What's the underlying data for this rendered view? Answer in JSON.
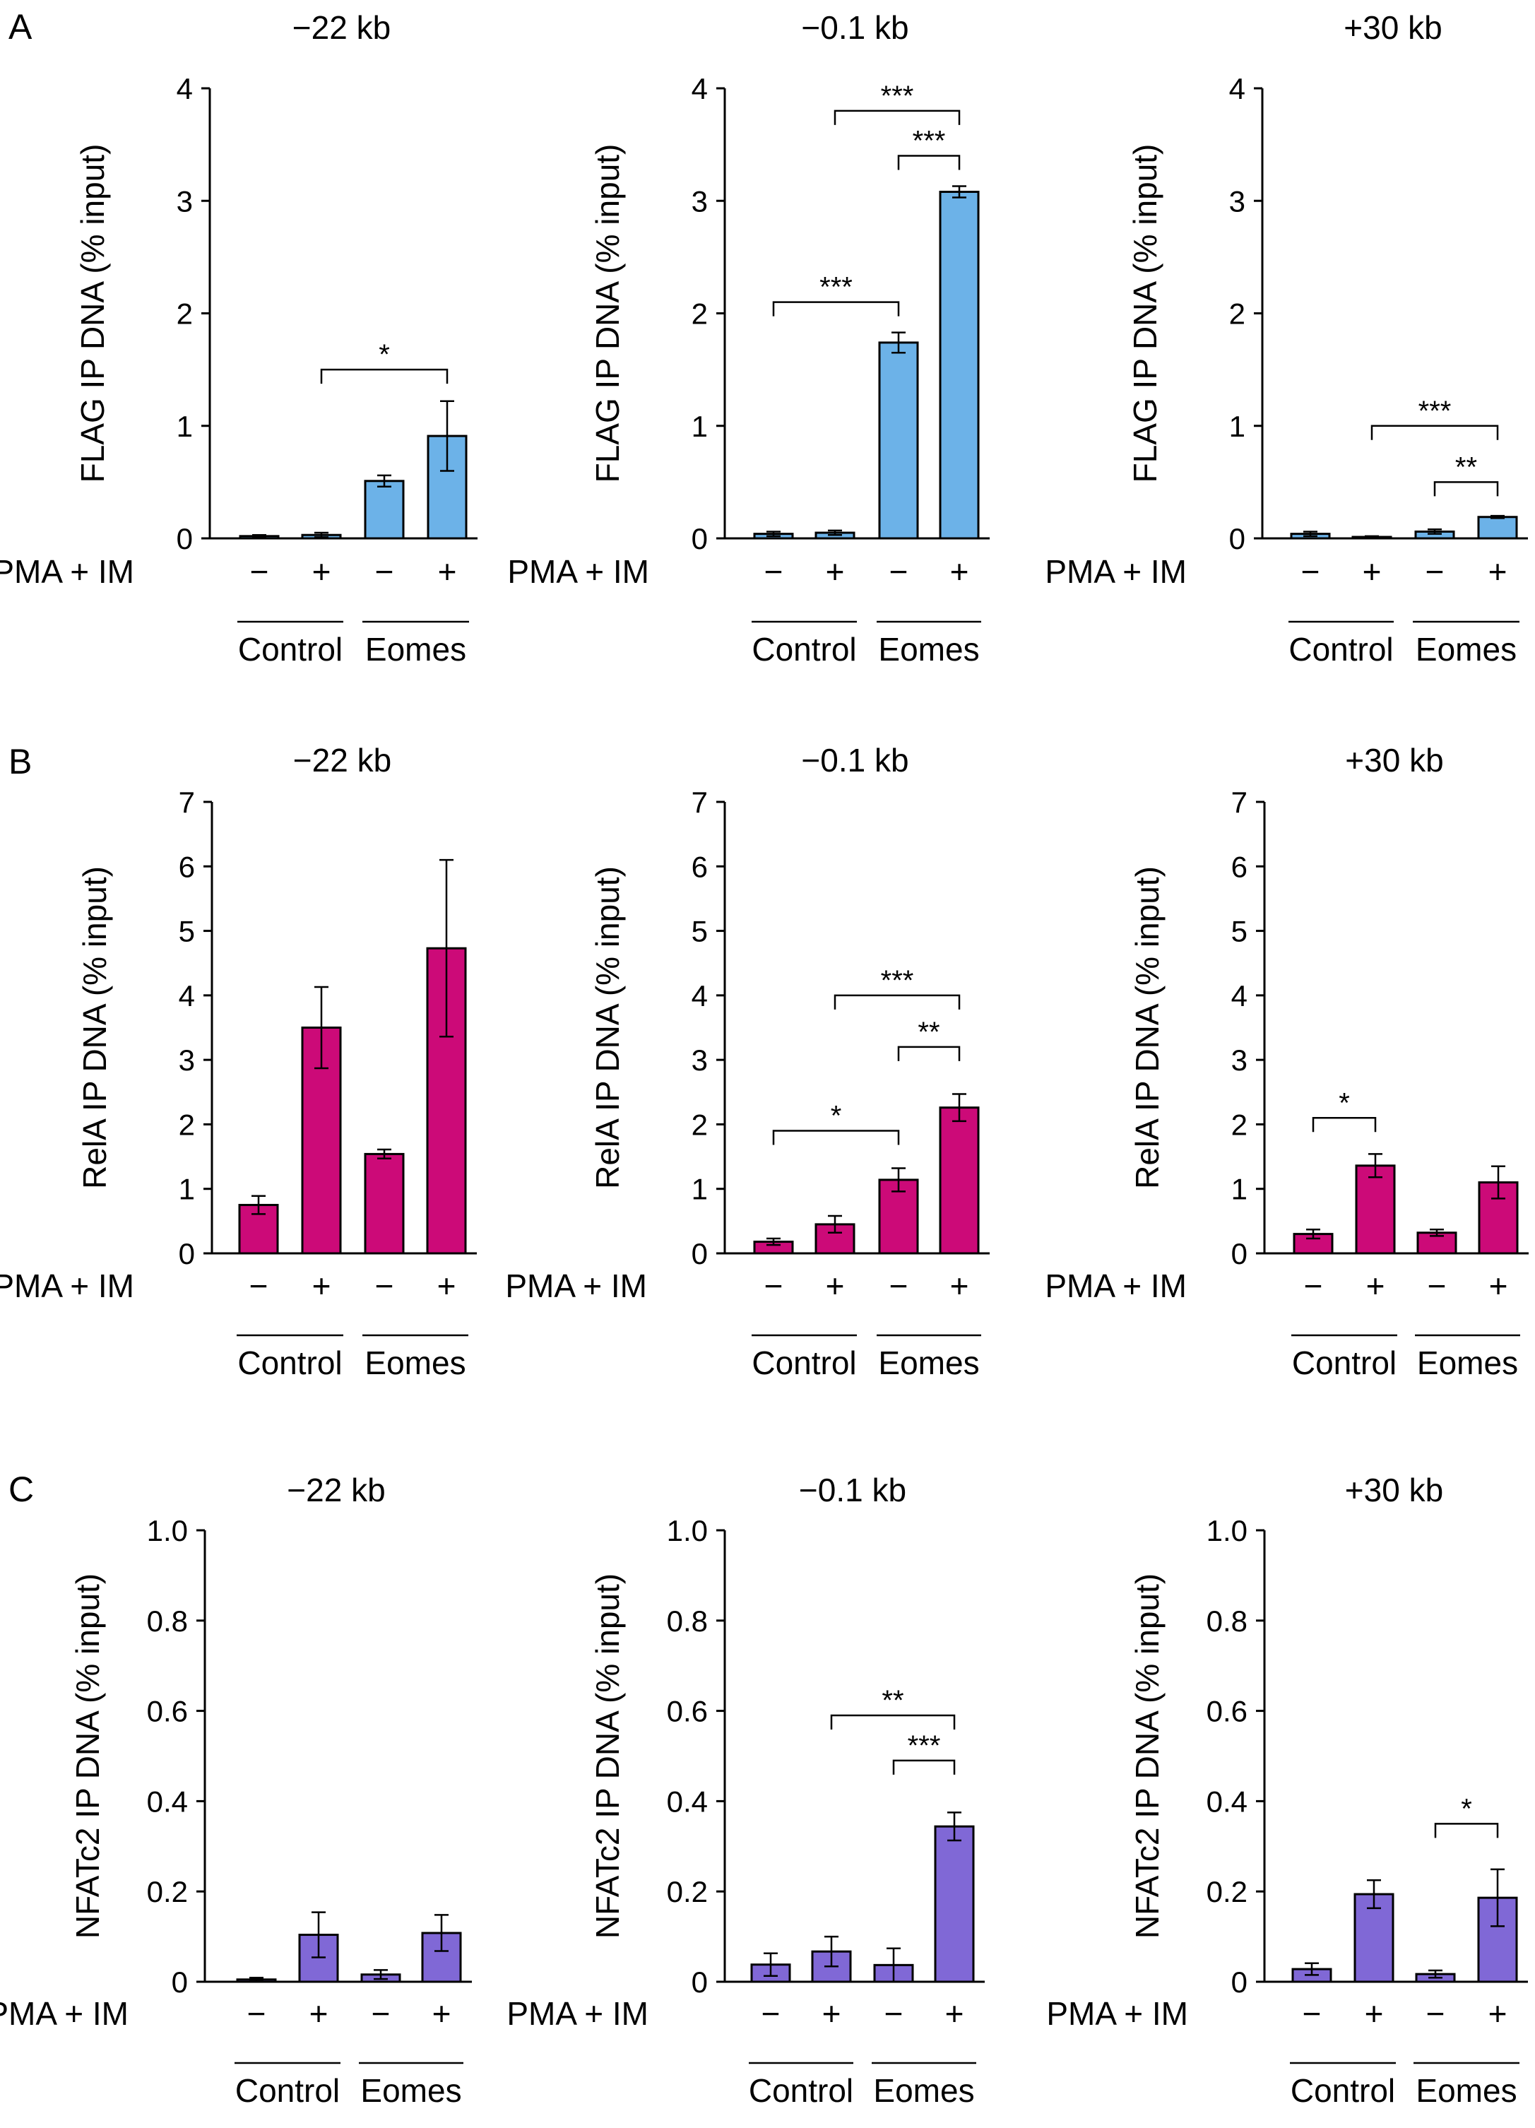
{
  "panel_labels": [
    "A",
    "B",
    "C"
  ],
  "row_label": "PMA + IM",
  "treatment_signs": [
    "−",
    "+",
    "−",
    "+"
  ],
  "group_labels": [
    "Control",
    "Eomes"
  ],
  "colors": {
    "A": "#6cb2e8",
    "B": "#cc0a78",
    "C": "#8068d6"
  },
  "chart_data": [
    {
      "type": "bar",
      "panel": "A",
      "title": "−22 kb",
      "ylabel": "FLAG IP DNA (% input)",
      "ylim": [
        0,
        4
      ],
      "yticks": [
        "0",
        "1",
        "2",
        "3",
        "4"
      ],
      "yticks_values": [
        0,
        1,
        2,
        3,
        4
      ],
      "categories": [
        "Control −",
        "Control +",
        "Eomes −",
        "Eomes +"
      ],
      "values": [
        0.02,
        0.03,
        0.51,
        0.91
      ],
      "errors": [
        0.01,
        0.02,
        0.05,
        0.31
      ],
      "significance": [
        {
          "from": 1,
          "to": 3,
          "label": "*",
          "y": 1.5
        }
      ]
    },
    {
      "type": "bar",
      "panel": "A",
      "title": "−0.1 kb",
      "ylabel": "FLAG IP DNA (% input)",
      "ylim": [
        0,
        4
      ],
      "yticks": [
        "0",
        "1",
        "2",
        "3",
        "4"
      ],
      "yticks_values": [
        0,
        1,
        2,
        3,
        4
      ],
      "categories": [
        "Control −",
        "Control +",
        "Eomes −",
        "Eomes +"
      ],
      "values": [
        0.04,
        0.05,
        1.74,
        3.08
      ],
      "errors": [
        0.02,
        0.02,
        0.09,
        0.05
      ],
      "significance": [
        {
          "from": 0,
          "to": 2,
          "label": "***",
          "y": 2.1
        },
        {
          "from": 1,
          "to": 3,
          "label": "***",
          "y": 3.8
        },
        {
          "from": 2,
          "to": 3,
          "label": "***",
          "y": 3.4
        }
      ]
    },
    {
      "type": "bar",
      "panel": "A",
      "title": "+30 kb",
      "ylabel": "FLAG IP DNA (% input)",
      "ylim": [
        0,
        4
      ],
      "yticks": [
        "0",
        "1",
        "2",
        "3",
        "4"
      ],
      "yticks_values": [
        0,
        1,
        2,
        3,
        4
      ],
      "categories": [
        "Control −",
        "Control +",
        "Eomes −",
        "Eomes +"
      ],
      "values": [
        0.04,
        0.01,
        0.06,
        0.19
      ],
      "errors": [
        0.02,
        0.01,
        0.02,
        0.01
      ],
      "significance": [
        {
          "from": 1,
          "to": 3,
          "label": "***",
          "y": 1.0
        },
        {
          "from": 2,
          "to": 3,
          "label": "**",
          "y": 0.5
        }
      ]
    },
    {
      "type": "bar",
      "panel": "B",
      "title": "−22 kb",
      "ylabel": "RelA IP DNA (% input)",
      "ylim": [
        0,
        7
      ],
      "yticks": [
        "0",
        "1",
        "2",
        "3",
        "4",
        "5",
        "6",
        "7"
      ],
      "yticks_values": [
        0,
        1,
        2,
        3,
        4,
        5,
        6,
        7
      ],
      "categories": [
        "Control −",
        "Control +",
        "Eomes −",
        "Eomes +"
      ],
      "values": [
        0.75,
        3.5,
        1.54,
        4.73
      ],
      "errors": [
        0.14,
        0.63,
        0.07,
        1.37
      ],
      "significance": []
    },
    {
      "type": "bar",
      "panel": "B",
      "title": "−0.1 kb",
      "ylabel": "RelA IP DNA (% input)",
      "ylim": [
        0,
        7
      ],
      "yticks": [
        "0",
        "1",
        "2",
        "3",
        "4",
        "5",
        "6",
        "7"
      ],
      "yticks_values": [
        0,
        1,
        2,
        3,
        4,
        5,
        6,
        7
      ],
      "categories": [
        "Control −",
        "Control +",
        "Eomes −",
        "Eomes +"
      ],
      "values": [
        0.18,
        0.45,
        1.14,
        2.26
      ],
      "errors": [
        0.05,
        0.13,
        0.18,
        0.21
      ],
      "significance": [
        {
          "from": 0,
          "to": 2,
          "label": "*",
          "y": 1.9
        },
        {
          "from": 1,
          "to": 3,
          "label": "***",
          "y": 4.0
        },
        {
          "from": 2,
          "to": 3,
          "label": "**",
          "y": 3.2
        }
      ]
    },
    {
      "type": "bar",
      "panel": "B",
      "title": "+30 kb",
      "ylabel": "RelA IP DNA (% input)",
      "ylim": [
        0,
        7
      ],
      "yticks": [
        "0",
        "1",
        "2",
        "3",
        "4",
        "5",
        "6",
        "7"
      ],
      "yticks_values": [
        0,
        1,
        2,
        3,
        4,
        5,
        6,
        7
      ],
      "categories": [
        "Control −",
        "Control +",
        "Eomes −",
        "Eomes +"
      ],
      "values": [
        0.3,
        1.36,
        0.32,
        1.1
      ],
      "errors": [
        0.07,
        0.18,
        0.05,
        0.25
      ],
      "significance": [
        {
          "from": 0,
          "to": 1,
          "label": "*",
          "y": 2.1
        }
      ]
    },
    {
      "type": "bar",
      "panel": "C",
      "title": "−22 kb",
      "ylabel": "NFATc2 IP DNA (% input)",
      "ylim": [
        0,
        1.0
      ],
      "yticks": [
        "0",
        "0.2",
        "0.4",
        "0.6",
        "0.8",
        "1.0"
      ],
      "yticks_values": [
        0,
        0.2,
        0.4,
        0.6,
        0.8,
        1.0
      ],
      "categories": [
        "Control −",
        "Control +",
        "Eomes −",
        "Eomes +"
      ],
      "values": [
        0.005,
        0.104,
        0.016,
        0.108
      ],
      "errors": [
        0.004,
        0.05,
        0.01,
        0.04
      ],
      "significance": []
    },
    {
      "type": "bar",
      "panel": "C",
      "title": "−0.1 kb",
      "ylabel": "NFATc2 IP DNA (% input)",
      "ylim": [
        0,
        1.0
      ],
      "yticks": [
        "0",
        "0.2",
        "0.4",
        "0.6",
        "0.8",
        "1.0"
      ],
      "yticks_values": [
        0,
        0.2,
        0.4,
        0.6,
        0.8,
        1.0
      ],
      "categories": [
        "Control −",
        "Control +",
        "Eomes −",
        "Eomes +"
      ],
      "values": [
        0.038,
        0.067,
        0.037,
        0.344
      ],
      "errors": [
        0.025,
        0.033,
        0.037,
        0.031
      ],
      "significance": [
        {
          "from": 1,
          "to": 3,
          "label": "**",
          "y": 0.59
        },
        {
          "from": 2,
          "to": 3,
          "label": "***",
          "y": 0.49
        }
      ]
    },
    {
      "type": "bar",
      "panel": "C",
      "title": "+30 kb",
      "ylabel": "NFATc2 IP DNA (% input)",
      "ylim": [
        0,
        1.0
      ],
      "yticks": [
        "0",
        "0.2",
        "0.4",
        "0.6",
        "0.8",
        "1.0"
      ],
      "yticks_values": [
        0,
        0.2,
        0.4,
        0.6,
        0.8,
        1.0
      ],
      "categories": [
        "Control −",
        "Control +",
        "Eomes −",
        "Eomes +"
      ],
      "values": [
        0.028,
        0.194,
        0.017,
        0.186
      ],
      "errors": [
        0.013,
        0.031,
        0.008,
        0.063
      ],
      "significance": [
        {
          "from": 2,
          "to": 3,
          "label": "*",
          "y": 0.35
        }
      ]
    }
  ]
}
